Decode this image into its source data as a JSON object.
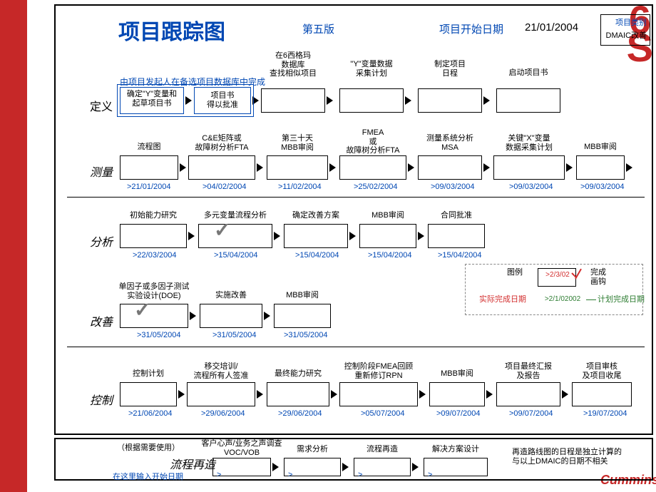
{
  "header": {
    "title": "项目跟踪图",
    "version": "第五版",
    "start_label": "项目开始日期",
    "start_date": "21/01/2004",
    "category_label": "项目类别",
    "category_value": "DMAIC改善",
    "note": "由项目发起人在备选项目数据库中完成"
  },
  "phases": {
    "define": {
      "label": "定义",
      "heads": [
        "确定\"Y\"变量和\n起草项目书",
        "项目书\n得以批准",
        "在6西格玛\n数据库\n查找相似项目",
        "\"Y\"变量数据\n采集计划",
        "制定项目\n日程",
        "启动项目书"
      ]
    },
    "measure": {
      "label": "测量",
      "heads": [
        "流程图",
        "C&E矩阵或\n故障树分析FTA",
        "第三十天\nMBB审阅",
        "FMEA\n或\n故障树分析FTA",
        "测量系统分析\nMSA",
        "关键\"X\"变量\n数据采集计划",
        "MBB审阅"
      ],
      "dates": [
        ">21/01/2004",
        ">04/02/2004",
        ">11/02/2004",
        ">25/02/2004",
        ">09/03/2004",
        ">09/03/2004",
        ">09/03/2004"
      ]
    },
    "analyze": {
      "label": "分析",
      "heads": [
        "初始能力研究",
        "多元变量流程分析",
        "确定改善方案",
        "MBB审阅",
        "合同批准"
      ],
      "dates": [
        ">22/03/2004",
        ">15/04/2004",
        ">15/04/2004",
        ">15/04/2004",
        ">15/04/2004"
      ]
    },
    "improve": {
      "label": "改善",
      "heads": [
        "单因子或多因子测试\n实验设计(DOE)",
        "实施改善",
        "MBB审阅"
      ],
      "dates": [
        ">31/05/2004",
        ">31/05/2004",
        ">31/05/2004"
      ]
    },
    "control": {
      "label": "控制",
      "heads": [
        "控制计划",
        "移交培训/\n流程所有人签准",
        "最终能力研究",
        "控制阶段FMEA回顾\n重新修订RPN",
        "MBB审阅",
        "项目最终汇报\n及报告",
        "项目审核\n及项目收尾"
      ],
      "dates": [
        ">21/06/2004",
        ">29/06/2004",
        ">29/06/2004",
        ">05/07/2004",
        ">09/07/2004",
        ">09/07/2004",
        ">19/07/2004"
      ]
    }
  },
  "legend": {
    "title": "图例",
    "actual_label": "实际完成日期",
    "plan_label": "计划完成日期",
    "done_label": "完成\n画钩",
    "date1": ">2/3/02",
    "date2": ">2/1/02002"
  },
  "reengineer": {
    "note1": "（根据需要使用）",
    "title": "流程再造",
    "heads": [
      "客户心声/业务之声调查\nVOC/VOB",
      "需求分析",
      "流程再造",
      "解决方案设计"
    ],
    "note2": "再造路线图的日程是独立计算的\n与以上DMAIC的日期不相关",
    "input_label": "在这里输入开始日期",
    "gt": ">"
  },
  "colors": {
    "primary": "#0047b3",
    "red": "#c62828"
  }
}
